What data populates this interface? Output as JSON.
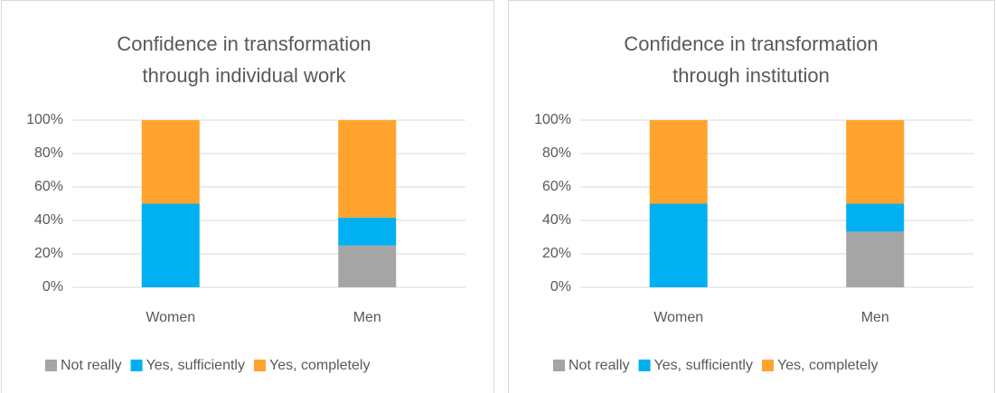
{
  "chart_data": [
    {
      "type": "stacked_bar",
      "title": [
        "Confidence in transformation",
        "through individual work"
      ],
      "categories": [
        "Women",
        "Men"
      ],
      "series": [
        {
          "name": "Not really",
          "color": "#a5a5a5",
          "values": [
            0,
            25
          ]
        },
        {
          "name": "Yes, sufficiently",
          "color": "#00b0f0",
          "values": [
            50,
            16.7
          ]
        },
        {
          "name": "Yes, completely",
          "color": "#ffa32f",
          "values": [
            50,
            58.3
          ]
        }
      ],
      "ylim": [
        0,
        100
      ],
      "yticks": [
        {
          "value": 0,
          "label": "0%"
        },
        {
          "value": 20,
          "label": "20%"
        },
        {
          "value": 40,
          "label": "40%"
        },
        {
          "value": 60,
          "label": "60%"
        },
        {
          "value": 80,
          "label": "80%"
        },
        {
          "value": 100,
          "label": "100%"
        }
      ],
      "grid": true,
      "legend": "bottom"
    },
    {
      "type": "stacked_bar",
      "title": [
        "Confidence in transformation",
        "through institution"
      ],
      "categories": [
        "Women",
        "Men"
      ],
      "series": [
        {
          "name": "Not really",
          "color": "#a5a5a5",
          "values": [
            0,
            33.3
          ]
        },
        {
          "name": "Yes, sufficiently",
          "color": "#00b0f0",
          "values": [
            50,
            16.7
          ]
        },
        {
          "name": "Yes, completely",
          "color": "#ffa32f",
          "values": [
            50,
            50
          ]
        }
      ],
      "ylim": [
        0,
        100
      ],
      "yticks": [
        {
          "value": 0,
          "label": "0%"
        },
        {
          "value": 20,
          "label": "20%"
        },
        {
          "value": 40,
          "label": "40%"
        },
        {
          "value": 60,
          "label": "60%"
        },
        {
          "value": 80,
          "label": "80%"
        },
        {
          "value": 100,
          "label": "100%"
        }
      ],
      "grid": true,
      "legend": "bottom"
    }
  ]
}
